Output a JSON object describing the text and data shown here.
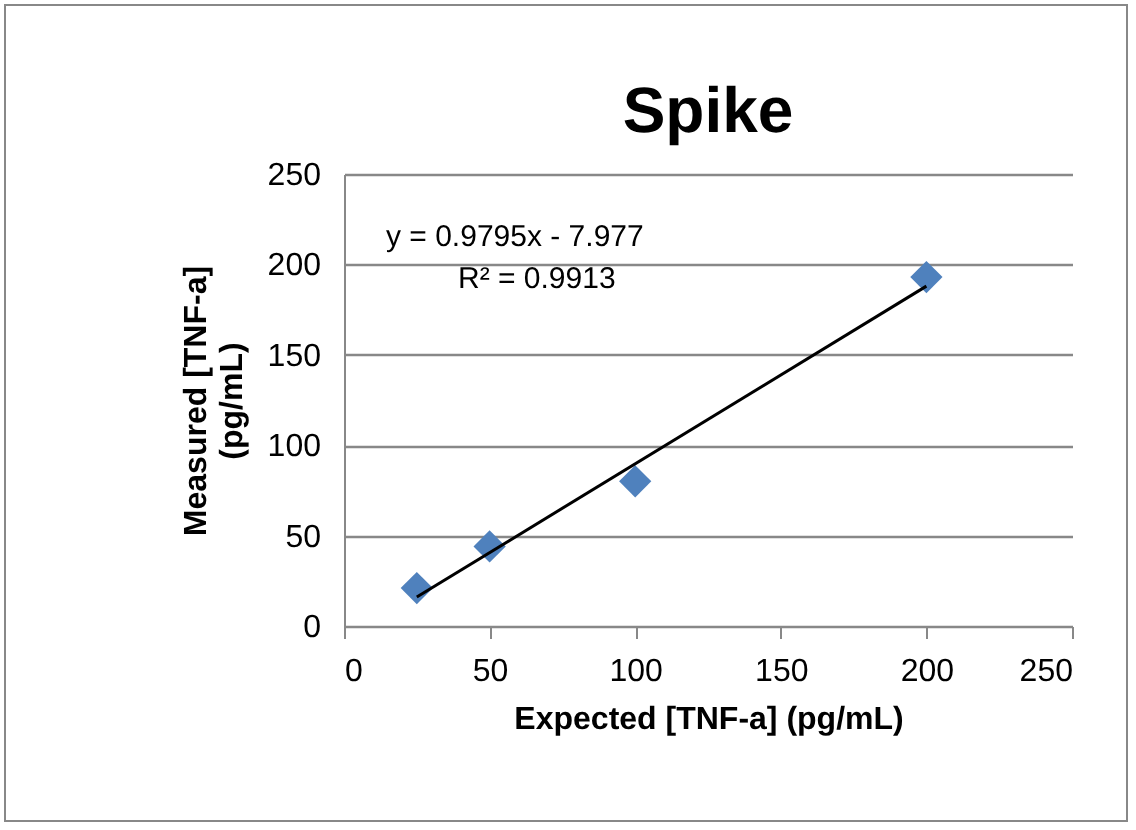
{
  "chart_data": {
    "type": "scatter",
    "title": "Spike",
    "xlabel": "Expected [TNF-a] (pg/mL)",
    "ylabel": "Measured [TNF-a] (pg/mL)",
    "x": [
      25,
      50,
      100,
      200
    ],
    "series": [
      {
        "color": "#4f81bd",
        "values": [
          21,
          44,
          80,
          193
        ]
      },
      {
        "type": "line",
        "marker": "none",
        "color": "#000000",
        "x": [
          25,
          200
        ],
        "values": [
          16,
          188
        ]
      }
    ],
    "annotations": [
      "y = 0.9795x - 7.977",
      "R² = 0.9913"
    ],
    "marker": "diamond",
    "grid": "y",
    "xlim": [
      0,
      250
    ],
    "xticks": [
      0,
      50,
      100,
      150,
      200,
      250
    ],
    "ylim": [
      0,
      250
    ],
    "yticks": [
      0,
      50,
      100,
      150,
      200,
      250
    ]
  }
}
